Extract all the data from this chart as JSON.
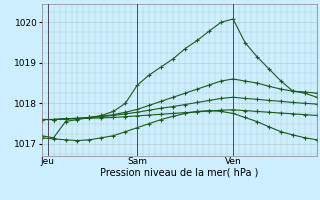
{
  "xlabel": "Pression niveau de la mer( hPa )",
  "bg_color": "#cceeff",
  "grid_color": "#b0c8c8",
  "line_color": "#1a5c1a",
  "ylim": [
    1016.7,
    1020.45
  ],
  "yticks": [
    1017,
    1018,
    1019,
    1020
  ],
  "xlim": [
    0,
    23
  ],
  "day_labels": [
    "Jeu",
    "Sam",
    "Ven"
  ],
  "day_positions": [
    0.5,
    8,
    16
  ],
  "vline_positions": [
    0.5,
    8,
    16
  ],
  "series": [
    [
      1017.2,
      1017.15,
      1017.55,
      1017.6,
      1017.65,
      1017.7,
      1017.8,
      1018.0,
      1018.45,
      1018.7,
      1018.9,
      1019.1,
      1019.35,
      1019.55,
      1019.78,
      1020.0,
      1020.08,
      1019.5,
      1019.15,
      1018.85,
      1018.55,
      1018.3,
      1018.25,
      1018.15
    ],
    [
      1017.6,
      1017.6,
      1017.62,
      1017.63,
      1017.65,
      1017.68,
      1017.72,
      1017.78,
      1017.85,
      1017.95,
      1018.05,
      1018.15,
      1018.25,
      1018.35,
      1018.45,
      1018.55,
      1018.6,
      1018.55,
      1018.5,
      1018.42,
      1018.35,
      1018.3,
      1018.28,
      1018.25
    ],
    [
      1017.6,
      1017.6,
      1017.62,
      1017.63,
      1017.65,
      1017.67,
      1017.7,
      1017.74,
      1017.78,
      1017.83,
      1017.88,
      1017.92,
      1017.97,
      1018.02,
      1018.07,
      1018.12,
      1018.15,
      1018.12,
      1018.1,
      1018.07,
      1018.05,
      1018.02,
      1018.0,
      1017.98
    ],
    [
      1017.6,
      1017.6,
      1017.61,
      1017.62,
      1017.63,
      1017.64,
      1017.65,
      1017.67,
      1017.69,
      1017.71,
      1017.73,
      1017.75,
      1017.77,
      1017.79,
      1017.81,
      1017.83,
      1017.84,
      1017.82,
      1017.8,
      1017.78,
      1017.76,
      1017.74,
      1017.72,
      1017.7
    ],
    [
      1017.15,
      1017.12,
      1017.1,
      1017.08,
      1017.1,
      1017.15,
      1017.2,
      1017.3,
      1017.4,
      1017.5,
      1017.6,
      1017.68,
      1017.75,
      1017.8,
      1017.82,
      1017.8,
      1017.75,
      1017.65,
      1017.55,
      1017.42,
      1017.3,
      1017.22,
      1017.15,
      1017.1
    ]
  ],
  "marker": "+"
}
